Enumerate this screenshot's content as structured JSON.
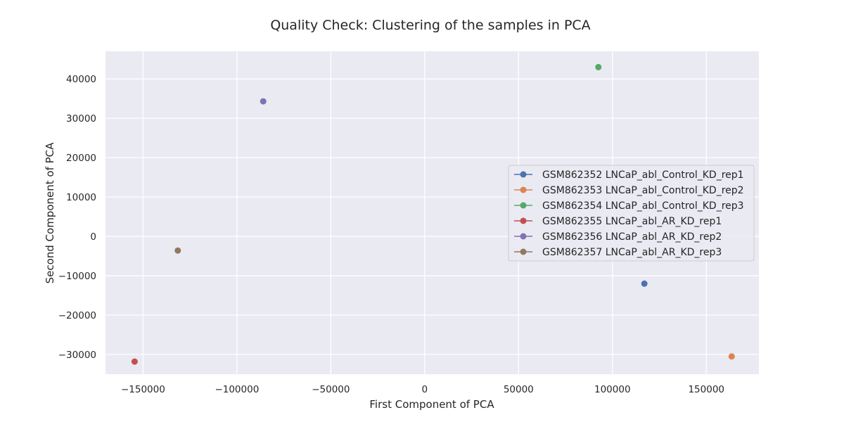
{
  "chart_data": {
    "type": "scatter",
    "title": "Quality Check: Clustering of the samples in PCA",
    "xlabel": "First Component of PCA",
    "ylabel": "Second Component of PCA",
    "xlim": [
      -170000,
      178000
    ],
    "ylim": [
      -35000,
      47000
    ],
    "xticks": [
      -150000,
      -100000,
      -50000,
      0,
      50000,
      100000,
      150000
    ],
    "yticks": [
      -30000,
      -20000,
      -10000,
      0,
      10000,
      20000,
      30000,
      40000
    ],
    "grid": true,
    "legend_position": "center-right",
    "series": [
      {
        "name": "GSM862352 LNCaP_abl_Control_KD_rep1",
        "color": "#4c72b0",
        "x": [
          117000
        ],
        "y": [
          -12000
        ]
      },
      {
        "name": "GSM862353 LNCaP_abl_Control_KD_rep2",
        "color": "#dd8452",
        "x": [
          163500
        ],
        "y": [
          -30500
        ]
      },
      {
        "name": "GSM862354 LNCaP_abl_Control_KD_rep3",
        "color": "#55a868",
        "x": [
          92500
        ],
        "y": [
          43000
        ]
      },
      {
        "name": "GSM862355 LNCaP_abl_AR_KD_rep1",
        "color": "#c44e52",
        "x": [
          -154500
        ],
        "y": [
          -31800
        ]
      },
      {
        "name": "GSM862356 LNCaP_abl_AR_KD_rep2",
        "color": "#8172b3",
        "x": [
          -86000
        ],
        "y": [
          34300
        ]
      },
      {
        "name": "GSM862357 LNCaP_abl_AR_KD_rep3",
        "color": "#937860",
        "x": [
          -131500
        ],
        "y": [
          -3600
        ]
      }
    ]
  }
}
